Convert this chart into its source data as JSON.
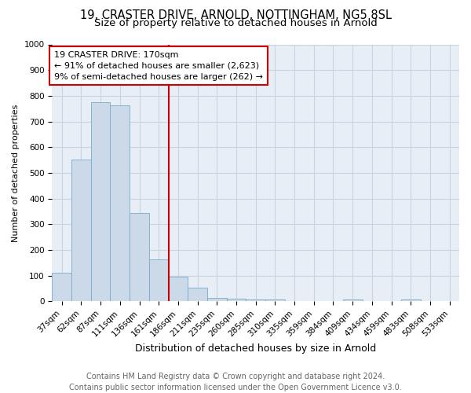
{
  "title_line1": "19, CRASTER DRIVE, ARNOLD, NOTTINGHAM, NG5 8SL",
  "title_line2": "Size of property relative to detached houses in Arnold",
  "xlabel": "Distribution of detached houses by size in Arnold",
  "ylabel": "Number of detached properties",
  "categories": [
    "37sqm",
    "62sqm",
    "87sqm",
    "111sqm",
    "136sqm",
    "161sqm",
    "186sqm",
    "211sqm",
    "235sqm",
    "260sqm",
    "285sqm",
    "310sqm",
    "335sqm",
    "359sqm",
    "384sqm",
    "409sqm",
    "434sqm",
    "459sqm",
    "483sqm",
    "508sqm",
    "533sqm"
  ],
  "values": [
    113,
    553,
    775,
    762,
    343,
    163,
    96,
    52,
    15,
    12,
    8,
    8,
    0,
    0,
    0,
    8,
    0,
    0,
    8,
    0,
    0
  ],
  "bar_color": "#ccd9e8",
  "bar_edge_color": "#7aaac8",
  "grid_color": "#c8d4e4",
  "background_color": "#e8eef5",
  "annotation_line1": "19 CRASTER DRIVE: 170sqm",
  "annotation_line2": "← 91% of detached houses are smaller (2,623)",
  "annotation_line3": "9% of semi-detached houses are larger (262) →",
  "annotation_box_color": "#ffffff",
  "annotation_box_edge_color": "#cc0000",
  "vline_color": "#cc0000",
  "vline_x_index": 5,
  "ylim": [
    0,
    1000
  ],
  "yticks": [
    0,
    100,
    200,
    300,
    400,
    500,
    600,
    700,
    800,
    900,
    1000
  ],
  "footer_line1": "Contains HM Land Registry data © Crown copyright and database right 2024.",
  "footer_line2": "Contains public sector information licensed under the Open Government Licence v3.0.",
  "title_fontsize": 10.5,
  "subtitle_fontsize": 9.5,
  "xlabel_fontsize": 9,
  "ylabel_fontsize": 8,
  "tick_fontsize": 7.5,
  "footer_fontsize": 7,
  "annotation_fontsize": 8
}
